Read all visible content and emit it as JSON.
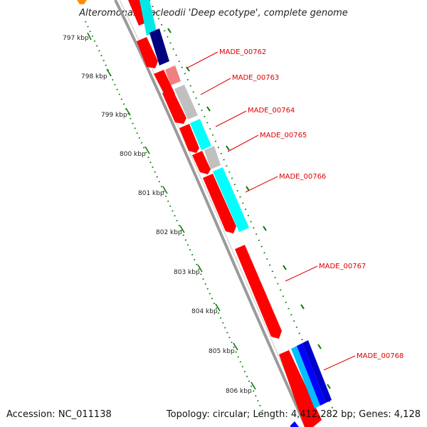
{
  "title": "Alteromonas macleodii 'Deep ecotype', complete genome",
  "footer": {
    "accession": "Accession: NC_011138",
    "summary": "Topology: circular; Length: 4,412,282 bp; Genes: 4,128"
  },
  "colors": {
    "backbone": "#888888",
    "cds_forward": "#ff0000",
    "cds_pink": "#f08080",
    "grey": "#c0c0c0",
    "cyan": "#00ffff",
    "navy": "#000080",
    "blue": "#0000ff",
    "tick": "#007700",
    "label": "#e00000",
    "orange": "#ff8c00"
  },
  "scale": {
    "unit": "kbp",
    "ticks": [
      {
        "label": "797 kbp"
      },
      {
        "label": "798 kbp"
      },
      {
        "label": "799 kbp"
      },
      {
        "label": "800 kbp"
      },
      {
        "label": "801 kbp"
      },
      {
        "label": "802 kbp"
      },
      {
        "label": "803 kbp"
      },
      {
        "label": "804 kbp"
      },
      {
        "label": "805 kbp"
      },
      {
        "label": "806 kbp"
      }
    ]
  },
  "gene_labels": [
    {
      "text": "MADE_00762"
    },
    {
      "text": "MADE_00763"
    },
    {
      "text": "MADE_00764"
    },
    {
      "text": "MADE_00765"
    },
    {
      "text": "MADE_00766"
    },
    {
      "text": "MADE_00767"
    },
    {
      "text": "MADE_00768"
    }
  ]
}
